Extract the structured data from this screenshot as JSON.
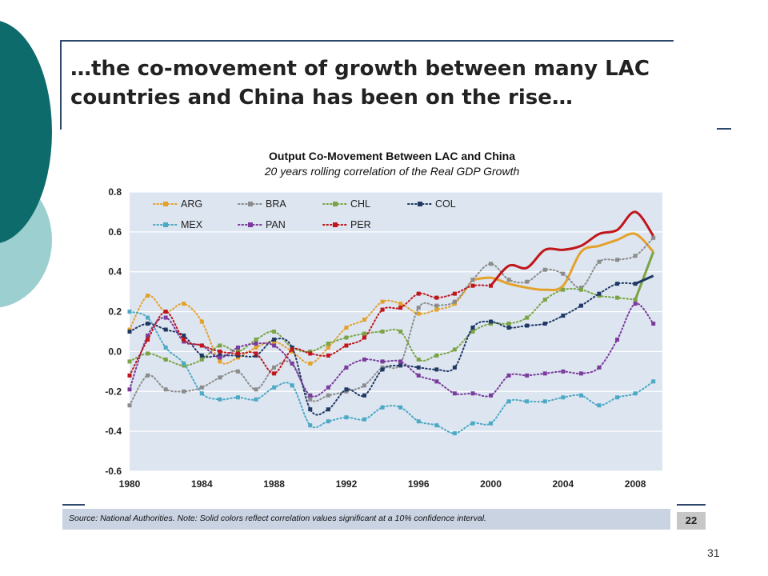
{
  "slide": {
    "title": "…the co-movement of growth between many LAC countries and China has been on the rise…",
    "source": "Source: National Authorities. Note: Solid colors reflect correlation values significant at a 10% confidence interval.",
    "page_box": "22",
    "slide_number": "31"
  },
  "colors": {
    "teal_dark": "#0e6b6b",
    "teal_light": "#9ccfcf",
    "title_rule": "#2f4a6d",
    "plot_bg": "#dde5f0",
    "source_bg": "#c9d3e2"
  },
  "chart_data": {
    "type": "line",
    "title": "Output Co-Movement Between LAC and China",
    "subtitle": "20 years rolling correlation of the Real GDP Growth",
    "x_ticks": [
      "1980",
      "1984",
      "1988",
      "1992",
      "1996",
      "2000",
      "2004",
      "2008"
    ],
    "y_ticks": [
      "0.8",
      "0.6",
      "0.4",
      "0.2",
      "0.0",
      "-0.2",
      "-0.4",
      "-0.6"
    ],
    "xlim": [
      1980,
      2009.5
    ],
    "ylim": [
      -0.6,
      0.8
    ],
    "grid": true,
    "legend_position": "top-left",
    "x": [
      1980,
      1981,
      1982,
      1983,
      1984,
      1985,
      1986,
      1987,
      1988,
      1989,
      1990,
      1991,
      1992,
      1993,
      1994,
      1995,
      1996,
      1997,
      1998,
      1999,
      2000,
      2001,
      2002,
      2003,
      2004,
      2005,
      2006,
      2007,
      2008,
      2009
    ],
    "series": [
      {
        "name": "ARG",
        "color": "#e4a12a",
        "solid_from": 1999,
        "values": [
          0.11,
          0.28,
          0.2,
          0.24,
          0.15,
          -0.05,
          -0.03,
          0.02,
          0.05,
          0.0,
          -0.06,
          0.02,
          0.12,
          0.16,
          0.25,
          0.24,
          0.19,
          0.21,
          0.24,
          0.36,
          0.37,
          0.34,
          0.32,
          0.31,
          0.33,
          0.5,
          0.53,
          0.56,
          0.59,
          0.5
        ]
      },
      {
        "name": "BRA",
        "color": "#8c8c8c",
        "solid_from": null,
        "values": [
          -0.27,
          -0.12,
          -0.19,
          -0.2,
          -0.18,
          -0.13,
          -0.1,
          -0.19,
          -0.08,
          -0.06,
          -0.24,
          -0.22,
          -0.2,
          -0.17,
          -0.08,
          -0.06,
          0.22,
          0.23,
          0.25,
          0.36,
          0.44,
          0.36,
          0.35,
          0.41,
          0.39,
          0.32,
          0.45,
          0.46,
          0.48,
          0.57
        ]
      },
      {
        "name": "CHL",
        "color": "#7aa443",
        "solid_from": 2008,
        "values": [
          -0.05,
          -0.01,
          -0.04,
          -0.07,
          -0.04,
          0.03,
          0.0,
          0.06,
          0.1,
          0.02,
          0.0,
          0.04,
          0.07,
          0.09,
          0.1,
          0.1,
          -0.04,
          -0.02,
          0.01,
          0.1,
          0.14,
          0.14,
          0.17,
          0.26,
          0.31,
          0.31,
          0.28,
          0.27,
          0.26,
          0.5
        ]
      },
      {
        "name": "COL",
        "color": "#1f3864",
        "solid_from": 2008,
        "values": [
          0.1,
          0.14,
          0.11,
          0.08,
          -0.02,
          -0.02,
          -0.02,
          -0.02,
          0.06,
          0.02,
          -0.29,
          -0.29,
          -0.19,
          -0.22,
          -0.09,
          -0.07,
          -0.08,
          -0.09,
          -0.08,
          0.12,
          0.15,
          0.12,
          0.13,
          0.14,
          0.18,
          0.23,
          0.29,
          0.34,
          0.34,
          0.38
        ]
      },
      {
        "name": "MEX",
        "color": "#4aa9c4",
        "solid_from": null,
        "values": [
          0.2,
          0.17,
          0.02,
          -0.06,
          -0.21,
          -0.24,
          -0.23,
          -0.24,
          -0.18,
          -0.17,
          -0.37,
          -0.35,
          -0.33,
          -0.34,
          -0.28,
          -0.28,
          -0.35,
          -0.37,
          -0.41,
          -0.36,
          -0.36,
          -0.25,
          -0.25,
          -0.25,
          -0.23,
          -0.22,
          -0.27,
          -0.23,
          -0.21,
          -0.15
        ]
      },
      {
        "name": "PAN",
        "color": "#7a3b9c",
        "solid_from": null,
        "values": [
          -0.19,
          0.08,
          0.17,
          0.05,
          0.03,
          -0.03,
          0.02,
          0.04,
          0.03,
          -0.06,
          -0.22,
          -0.18,
          -0.08,
          -0.04,
          -0.05,
          -0.05,
          -0.12,
          -0.15,
          -0.21,
          -0.21,
          -0.22,
          -0.12,
          -0.12,
          -0.11,
          -0.1,
          -0.11,
          -0.08,
          0.06,
          0.24,
          0.14
        ]
      },
      {
        "name": "PER",
        "color": "#c0161b",
        "solid_from": 2000,
        "values": [
          -0.12,
          0.06,
          0.2,
          0.06,
          0.03,
          0.0,
          -0.01,
          -0.01,
          -0.11,
          0.01,
          -0.01,
          -0.02,
          0.03,
          0.07,
          0.21,
          0.22,
          0.29,
          0.27,
          0.29,
          0.33,
          0.33,
          0.43,
          0.42,
          0.51,
          0.51,
          0.53,
          0.59,
          0.61,
          0.7,
          0.58
        ]
      }
    ]
  }
}
